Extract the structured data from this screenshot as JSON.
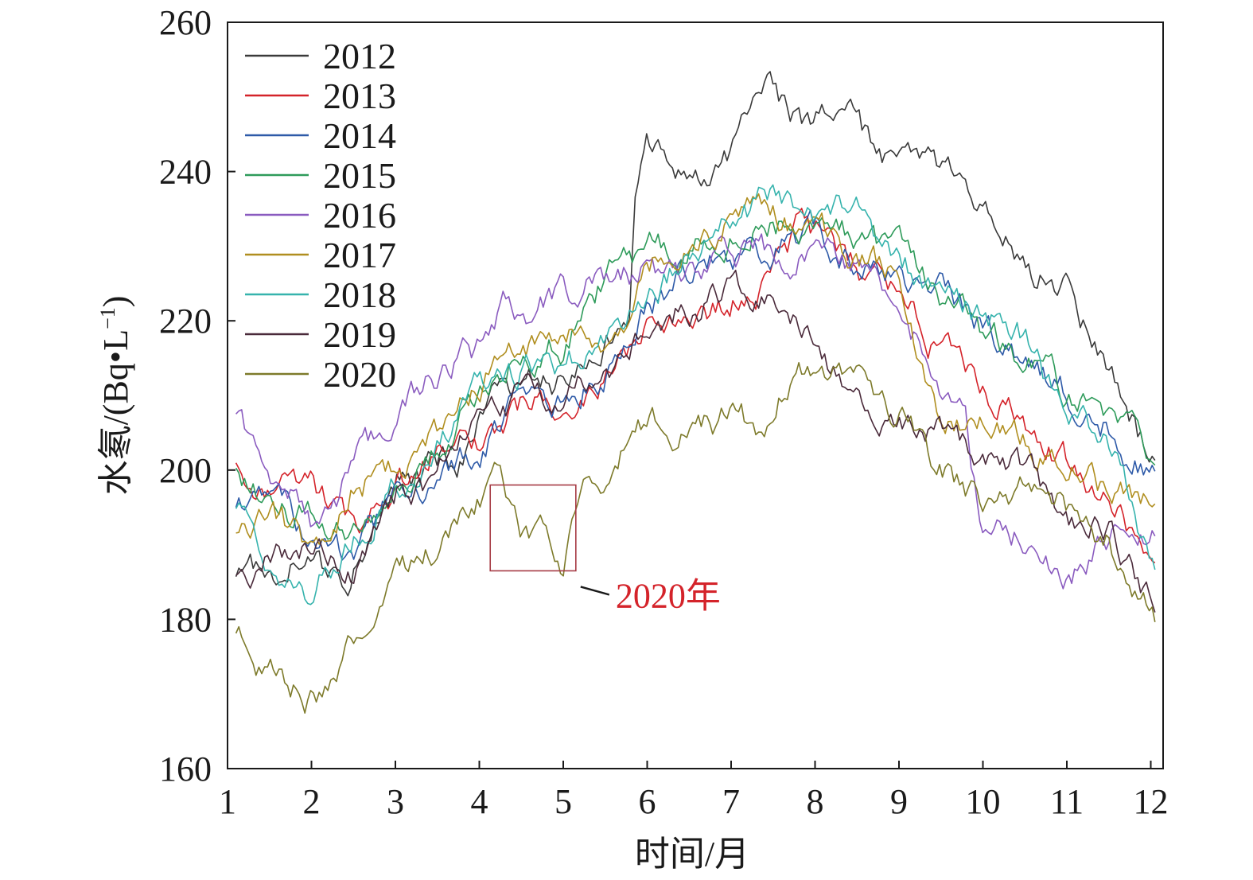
{
  "chart_data": {
    "type": "line",
    "xlabel": "时间/月",
    "ylabel": "水氡/(Bq•L⁻¹)",
    "ylabel_main": "水氡/",
    "ylabel_unit": "(Bq•L",
    "ylabel_sup": "−1",
    "ylabel_close": ")",
    "xlim": [
      1,
      12.1
    ],
    "ylim": [
      160,
      260
    ],
    "xticks": [
      1,
      2,
      3,
      4,
      5,
      6,
      7,
      8,
      9,
      10,
      11,
      12
    ],
    "yticks": [
      160,
      180,
      200,
      220,
      240,
      260
    ],
    "grid": false,
    "legend_position": "top-left",
    "annotation": {
      "text": "2020年",
      "box_x": [
        4.13,
        5.15
      ],
      "box_y": [
        186.5,
        198
      ],
      "color": "#d4232a"
    },
    "series": [
      {
        "name": "2012",
        "color": "#3a3a3a",
        "x": [
          1.1,
          1.5,
          2,
          2.4,
          3,
          3.5,
          3.8,
          4.2,
          4.6,
          5,
          5.5,
          5.8,
          5.85,
          6,
          6.5,
          7,
          7.3,
          7.5,
          7.8,
          8,
          8.5,
          8.8,
          9,
          9.5,
          10,
          10.5,
          11,
          11.5,
          12,
          12.05
        ],
        "y": [
          186,
          186,
          190,
          183,
          198,
          200,
          202,
          212,
          213,
          212,
          216,
          222,
          238,
          243,
          240,
          243,
          247,
          250,
          246,
          246,
          246,
          240,
          245,
          240,
          236,
          227,
          225,
          214,
          201,
          200
        ]
      },
      {
        "name": "2013",
        "color": "#d4232a",
        "x": [
          1.1,
          1.5,
          2,
          2.5,
          3,
          3.5,
          4,
          4.5,
          5,
          5.5,
          6,
          6.5,
          7,
          7.3,
          7.5,
          7.8,
          8,
          8.5,
          9,
          9.5,
          10,
          10.5,
          11,
          11.5,
          12,
          12.05
        ],
        "y": [
          200,
          199,
          198,
          192,
          197,
          201,
          203,
          208,
          209,
          212,
          218,
          218,
          222,
          224,
          226,
          232,
          231,
          226,
          224,
          216,
          211,
          207,
          201,
          197,
          189,
          188
        ]
      },
      {
        "name": "2014",
        "color": "#2e5aa8",
        "x": [
          1.1,
          1.5,
          2,
          2.5,
          3,
          3.5,
          4,
          4.5,
          5,
          5.5,
          6,
          6.5,
          7,
          7.5,
          8,
          8.5,
          9,
          9.5,
          10,
          10.5,
          11,
          11.5,
          12,
          12.05
        ],
        "y": [
          196,
          194,
          192,
          188,
          196,
          199,
          203,
          209,
          210,
          214,
          222,
          227,
          228,
          229,
          232,
          228,
          226,
          224,
          220,
          215,
          210,
          206,
          200,
          199
        ]
      },
      {
        "name": "2015",
        "color": "#2e9b5a",
        "x": [
          1.1,
          1.5,
          2,
          2.5,
          3,
          3.5,
          4,
          4.5,
          5,
          5.5,
          6,
          6.5,
          7,
          7.5,
          8,
          8.5,
          9,
          9.5,
          10,
          10.5,
          11,
          11.5,
          12,
          12.05
        ],
        "y": [
          200,
          197,
          193,
          191,
          198,
          203,
          211,
          216,
          217,
          226,
          230,
          229,
          231,
          234,
          232,
          232,
          228,
          223,
          219,
          215,
          210,
          206,
          203,
          202
        ]
      },
      {
        "name": "2016",
        "color": "#8a5bbf",
        "x": [
          1.1,
          1.5,
          2,
          2.5,
          3,
          3.5,
          4,
          4.3,
          4.5,
          5,
          5.5,
          6,
          6.5,
          7,
          7.5,
          8,
          8.5,
          9,
          9.5,
          9.8,
          10,
          10.5,
          11,
          11.5,
          12,
          12.05
        ],
        "y": [
          206,
          199,
          193,
          200,
          208,
          213,
          216,
          221,
          218,
          224,
          225,
          227,
          227,
          229,
          229,
          230,
          226,
          224,
          210,
          205,
          190,
          191,
          185,
          191,
          193,
          192
        ]
      },
      {
        "name": "2017",
        "color": "#b08e1f",
        "x": [
          1.1,
          1.5,
          2,
          2.5,
          3,
          3.5,
          4,
          4.5,
          5,
          5.5,
          6,
          6.5,
          7,
          7.3,
          7.6,
          8,
          8.5,
          9,
          9.5,
          10,
          10.5,
          11,
          11.5,
          12,
          12.05
        ],
        "y": [
          192,
          194,
          189,
          198,
          201,
          205,
          211,
          216,
          219,
          215,
          226,
          231,
          233,
          237,
          233,
          232,
          229,
          225,
          207,
          207,
          204,
          201,
          197,
          195,
          196
        ]
      },
      {
        "name": "2018",
        "color": "#36b3ad",
        "x": [
          1.1,
          1.5,
          2,
          2.5,
          3,
          3.5,
          4,
          4.5,
          5,
          5.5,
          6,
          6.5,
          7,
          7.5,
          8,
          8.5,
          9,
          9.5,
          10,
          10.5,
          11,
          11.5,
          12,
          12.05
        ],
        "y": [
          194,
          188,
          183,
          192,
          198,
          204,
          210,
          213,
          215,
          217,
          225,
          228,
          234,
          236,
          235,
          236,
          227,
          225,
          220,
          217,
          207,
          204,
          187,
          186
        ]
      },
      {
        "name": "2019",
        "color": "#4a2a3a",
        "x": [
          1.1,
          1.5,
          2,
          2.5,
          3,
          3.5,
          4,
          4.5,
          5,
          5.5,
          6,
          6.5,
          7,
          7.5,
          8,
          8.5,
          9,
          9.5,
          10,
          10.5,
          11,
          11.5,
          12,
          12.05
        ],
        "y": [
          187,
          189,
          191,
          186,
          196,
          199,
          207,
          209,
          211,
          213,
          218,
          222,
          225,
          222,
          217,
          210,
          208,
          205,
          200,
          200,
          194,
          193,
          183,
          182
        ]
      },
      {
        "name": "2020",
        "color": "#7d7a2a",
        "x": [
          1.1,
          1.3,
          1.6,
          2,
          2.3,
          2.6,
          3,
          3.3,
          3.6,
          4,
          4.2,
          4.5,
          4.8,
          5,
          5.2,
          5.5,
          5.8,
          6,
          6.5,
          7,
          7.3,
          7.6,
          8,
          8.5,
          9,
          9.5,
          10,
          10.5,
          11,
          11.5,
          12,
          12.05
        ],
        "y": [
          178,
          174,
          174,
          170,
          173,
          180,
          185,
          189,
          191,
          195,
          197,
          190,
          191,
          188,
          196,
          199,
          204,
          206,
          205,
          207,
          205,
          210,
          213,
          212,
          207,
          200,
          195,
          197,
          195,
          190,
          183,
          181
        ]
      }
    ]
  }
}
